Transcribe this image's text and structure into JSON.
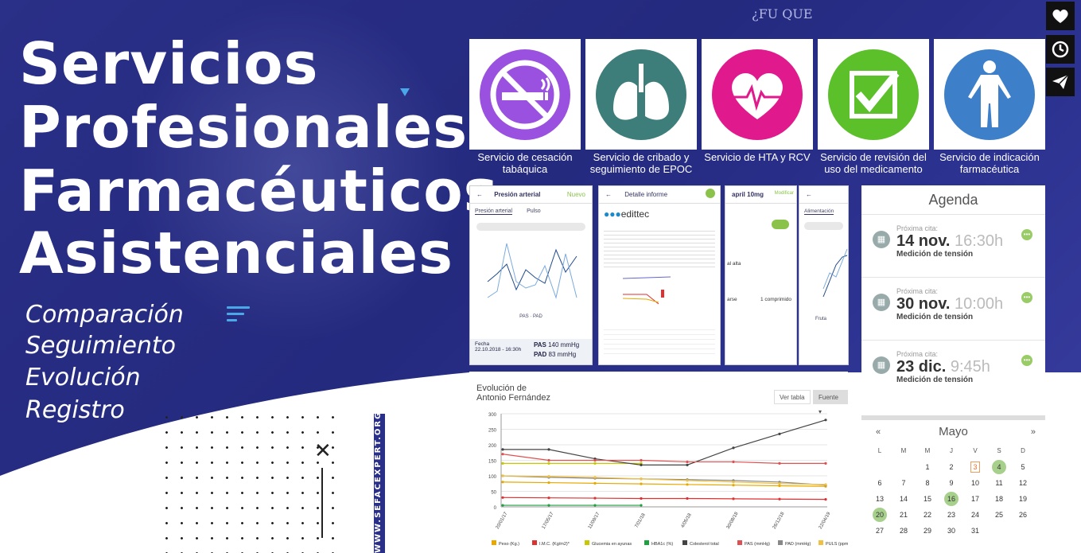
{
  "hero": {
    "title_lines": [
      "Servicios",
      "Profesionales",
      "Farmacéuticos",
      "Asistenciales"
    ],
    "subtitles": [
      "Comparación",
      "Seguimiento",
      "Evolución",
      "Registro"
    ],
    "vertical_url": "WWW.SEFACEXPERT.ORG",
    "bg_text": "¿FU QUE"
  },
  "services": [
    {
      "label": "Servicio de cesación tabáquica",
      "icon": "no-smoking-icon",
      "color": "#9b51e0"
    },
    {
      "label": "Servicio de cribado y seguimiento de EPOC",
      "icon": "lungs-icon",
      "color": "#3d7d7a"
    },
    {
      "label": "Servicio de HTA y RCV",
      "icon": "heart-pulse-icon",
      "color": "#e0198c"
    },
    {
      "label": "Servicio de revisión del uso del medicamento",
      "icon": "checkbox-icon",
      "color": "#5cc02a"
    },
    {
      "label": "Servicio de indicación farmacéutica",
      "icon": "human-body-icon",
      "color": "#3d7fc9"
    }
  ],
  "side_buttons": [
    {
      "icon": "heart-icon"
    },
    {
      "icon": "clock-icon"
    },
    {
      "icon": "paper-plane-icon"
    }
  ],
  "screens": {
    "s1": {
      "title": "Presión arterial",
      "action": "Nuevo",
      "tabs": [
        "Presión arterial",
        "Pulso"
      ],
      "fecha_label": "Fecha",
      "fecha": "22.10.2018 - 16:30h",
      "pas_label": "PAS",
      "pas": "140 mmHg",
      "pad_label": "PAD",
      "pad": "83 mmHg",
      "legend": [
        "PAS",
        "PAD"
      ]
    },
    "s2": {
      "title": "Detalle informe",
      "brand": "edittec"
    },
    "s3": {
      "title": "april 10mg",
      "action": "Modificar",
      "label1": "al alta",
      "label2": "arse",
      "label3": "1 comprimido"
    },
    "s4": {
      "tab": "Alimentación",
      "legend": "Fruta"
    }
  },
  "agenda": {
    "title": "Agenda",
    "items": [
      {
        "small": "Próxima cita:",
        "date": "14 nov.",
        "time": "16:30h",
        "desc": "Medición de tensión"
      },
      {
        "small": "Próxima cita:",
        "date": "30 nov.",
        "time": "10:00h",
        "desc": "Medición de tensión"
      },
      {
        "small": "Próxima cita:",
        "date": "23 dic.",
        "time": "9:45h",
        "desc": "Medición de tensión"
      }
    ]
  },
  "calendar": {
    "month": "Mayo",
    "prev": "«",
    "next": "»",
    "day_headers": [
      "L",
      "M",
      "M",
      "J",
      "V",
      "S",
      "D"
    ],
    "days": [
      "",
      "",
      "",
      "",
      "",
      "",
      "",
      "",
      "",
      "1",
      "2",
      "3",
      "4",
      "5",
      "6",
      "7",
      "8",
      "9",
      "10",
      "11",
      "12",
      "13",
      "14",
      "15",
      "16",
      "17",
      "18",
      "19",
      "20",
      "21",
      "22",
      "23",
      "24",
      "25",
      "26",
      "27",
      "28",
      "29",
      "30",
      "31"
    ],
    "highlighted": [
      "4",
      "16",
      "20"
    ],
    "today": "3"
  },
  "evolution": {
    "title_l1": "Evolución de",
    "title_l2": "Antonio Fernández",
    "btn_table": "Ver tabla",
    "btn_source": "Fuente ▾"
  },
  "chart_data": {
    "type": "line",
    "x": [
      "20/01/17",
      "17/05/17",
      "11/09/17",
      "7/01/18",
      "4/05/18",
      "30/08/18",
      "26/12/18",
      "22/04/19"
    ],
    "ylim": [
      0,
      300
    ],
    "yticks": [
      0,
      50,
      100,
      150,
      200,
      250,
      300
    ],
    "series": [
      {
        "name": "Peso (Kg.)",
        "color": "#e8a800",
        "values": [
          80,
          78,
          76,
          74,
          72,
          70,
          68,
          66
        ]
      },
      {
        "name": "I.M.C. (Kg/m2)*",
        "color": "#e03030",
        "values": [
          30,
          29,
          28,
          27,
          27,
          26,
          25,
          24
        ]
      },
      {
        "name": "Glucemia en ayunas",
        "color": "#c8c800",
        "values": [
          140,
          140,
          140,
          140,
          null,
          null,
          null,
          null
        ]
      },
      {
        "name": "HBA1c (%)",
        "color": "#20a040",
        "values": [
          5,
          5,
          5,
          5,
          null,
          null,
          null,
          null
        ]
      },
      {
        "name": "Colesterol total",
        "color": "#444444",
        "values": [
          185,
          185,
          155,
          135,
          135,
          190,
          235,
          280
        ]
      },
      {
        "name": "PAS (mmHg)",
        "color": "#e05050",
        "values": [
          170,
          150,
          150,
          150,
          145,
          145,
          140,
          140
        ]
      },
      {
        "name": "PAD (mmHg)",
        "color": "#888888",
        "values": [
          100,
          95,
          92,
          90,
          88,
          85,
          80,
          70
        ]
      },
      {
        "name": "PULS (ppm)",
        "color": "#f0c040",
        "values": [
          100,
          98,
          95,
          90,
          85,
          80,
          75,
          72
        ]
      }
    ]
  },
  "colors": {
    "bg": "#2a2f87",
    "accent": "#4aa8e8"
  }
}
